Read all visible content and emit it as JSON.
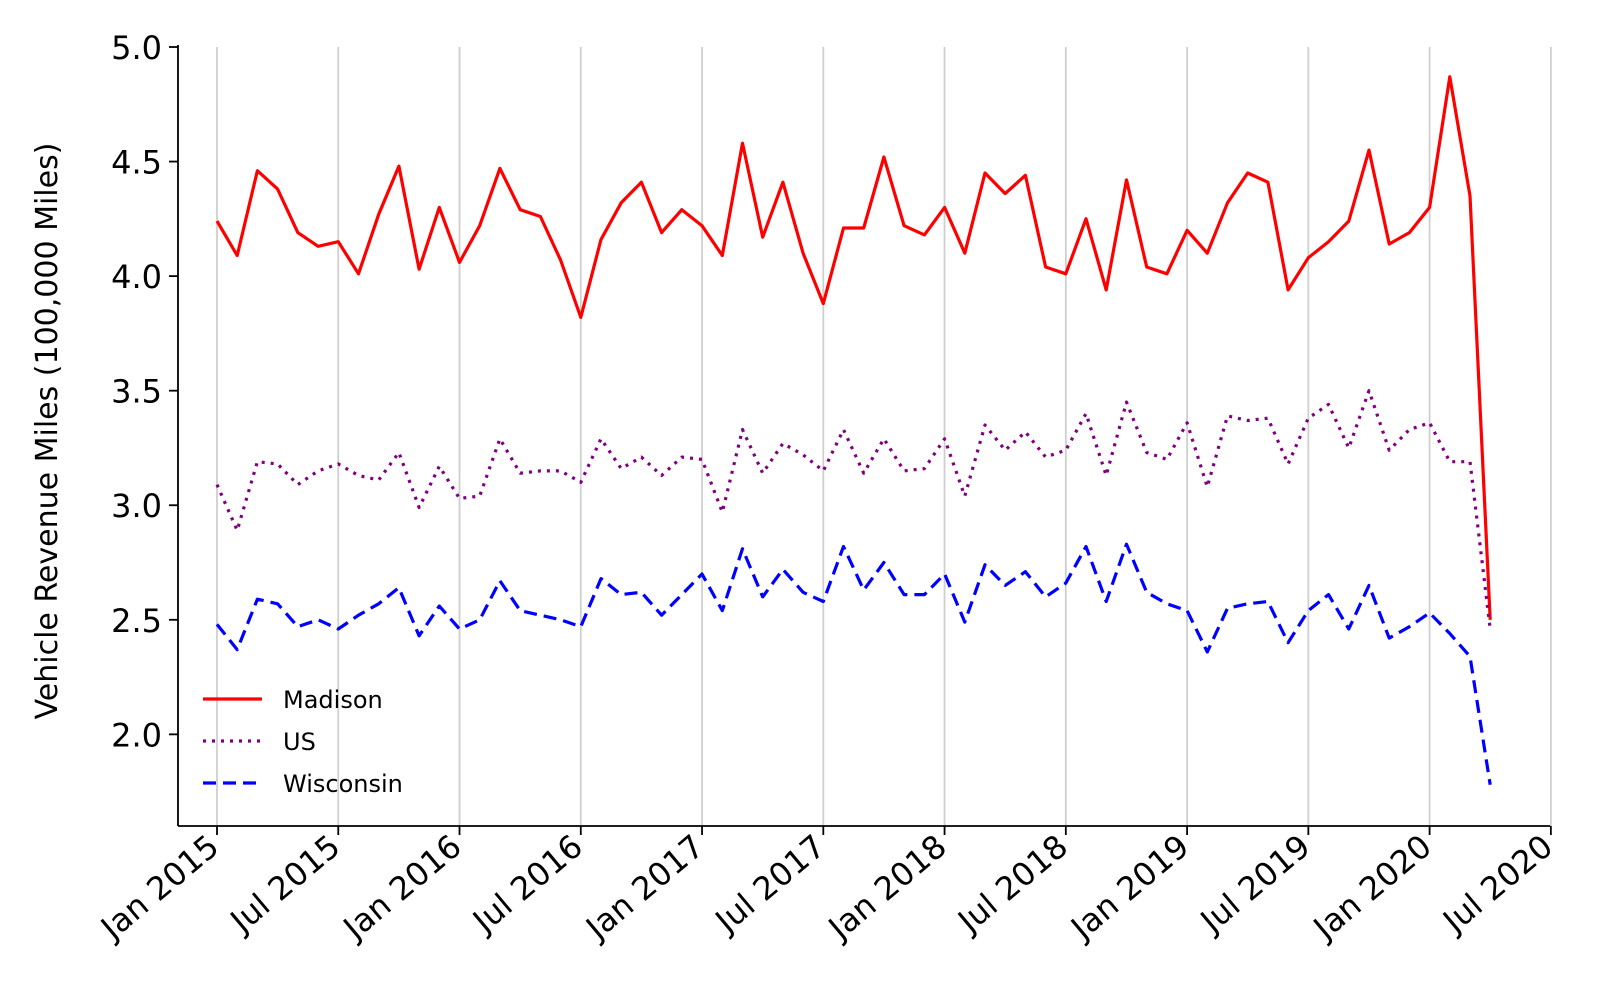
{
  "chart_data": {
    "type": "line",
    "title": "",
    "xlabel": "",
    "ylabel": "Vehicle Revenue Miles (100,000 Miles)",
    "x_start": "2015-01",
    "x_ticks": [
      "Jan 2015",
      "Jul 2015",
      "Jan 2016",
      "Jul 2016",
      "Jan 2017",
      "Jul 2017",
      "Jan 2018",
      "Jul 2018",
      "Jan 2019",
      "Jul 2019",
      "Jan 2020",
      "Jul 2020"
    ],
    "y_ticks": [
      "2.0",
      "2.5",
      "3.0",
      "3.5",
      "4.0",
      "4.5",
      "5.0"
    ],
    "ylim": [
      1.6,
      5.0
    ],
    "grid": "vertical",
    "legend_position": "lower-left",
    "series": [
      {
        "name": "Madison",
        "color": "#ff0000",
        "style": "solid",
        "values": [
          4.24,
          4.09,
          4.46,
          4.38,
          4.19,
          4.13,
          4.15,
          4.01,
          4.27,
          4.48,
          4.03,
          4.3,
          4.06,
          4.22,
          4.47,
          4.29,
          4.26,
          4.07,
          3.82,
          4.16,
          4.32,
          4.41,
          4.19,
          4.29,
          4.22,
          4.09,
          4.58,
          4.17,
          4.41,
          4.1,
          3.88,
          4.21,
          4.21,
          4.52,
          4.22,
          4.18,
          4.3,
          4.1,
          4.45,
          4.36,
          4.44,
          4.04,
          4.01,
          4.25,
          3.94,
          4.42,
          4.04,
          4.01,
          4.2,
          4.1,
          4.32,
          4.45,
          4.41,
          3.94,
          4.08,
          4.15,
          4.24,
          4.55,
          4.14,
          4.19,
          4.3,
          4.87,
          4.35,
          2.5
        ]
      },
      {
        "name": "US",
        "color": "#800080",
        "style": "dotted",
        "values": [
          3.09,
          2.89,
          3.19,
          3.18,
          3.09,
          3.15,
          3.18,
          3.13,
          3.11,
          3.23,
          2.99,
          3.17,
          3.03,
          3.04,
          3.29,
          3.14,
          3.15,
          3.15,
          3.1,
          3.29,
          3.16,
          3.21,
          3.13,
          3.21,
          3.2,
          2.97,
          3.33,
          3.14,
          3.27,
          3.22,
          3.15,
          3.33,
          3.14,
          3.29,
          3.15,
          3.16,
          3.29,
          3.04,
          3.35,
          3.24,
          3.32,
          3.21,
          3.24,
          3.4,
          3.13,
          3.45,
          3.23,
          3.2,
          3.36,
          3.08,
          3.39,
          3.37,
          3.38,
          3.18,
          3.38,
          3.44,
          3.25,
          3.5,
          3.24,
          3.33,
          3.36,
          3.19,
          3.19,
          2.46
        ]
      },
      {
        "name": "Wisconsin",
        "color": "#0000ff",
        "style": "dashed",
        "values": [
          2.48,
          2.37,
          2.59,
          2.57,
          2.47,
          2.5,
          2.46,
          2.52,
          2.57,
          2.64,
          2.43,
          2.56,
          2.46,
          2.5,
          2.67,
          2.54,
          2.52,
          2.5,
          2.47,
          2.68,
          2.61,
          2.62,
          2.52,
          2.61,
          2.7,
          2.54,
          2.81,
          2.6,
          2.72,
          2.62,
          2.58,
          2.82,
          2.63,
          2.75,
          2.61,
          2.61,
          2.7,
          2.49,
          2.74,
          2.65,
          2.71,
          2.6,
          2.66,
          2.82,
          2.58,
          2.83,
          2.62,
          2.57,
          2.54,
          2.36,
          2.55,
          2.57,
          2.58,
          2.4,
          2.54,
          2.61,
          2.46,
          2.65,
          2.42,
          2.47,
          2.53,
          2.44,
          2.34,
          1.78
        ]
      }
    ]
  }
}
